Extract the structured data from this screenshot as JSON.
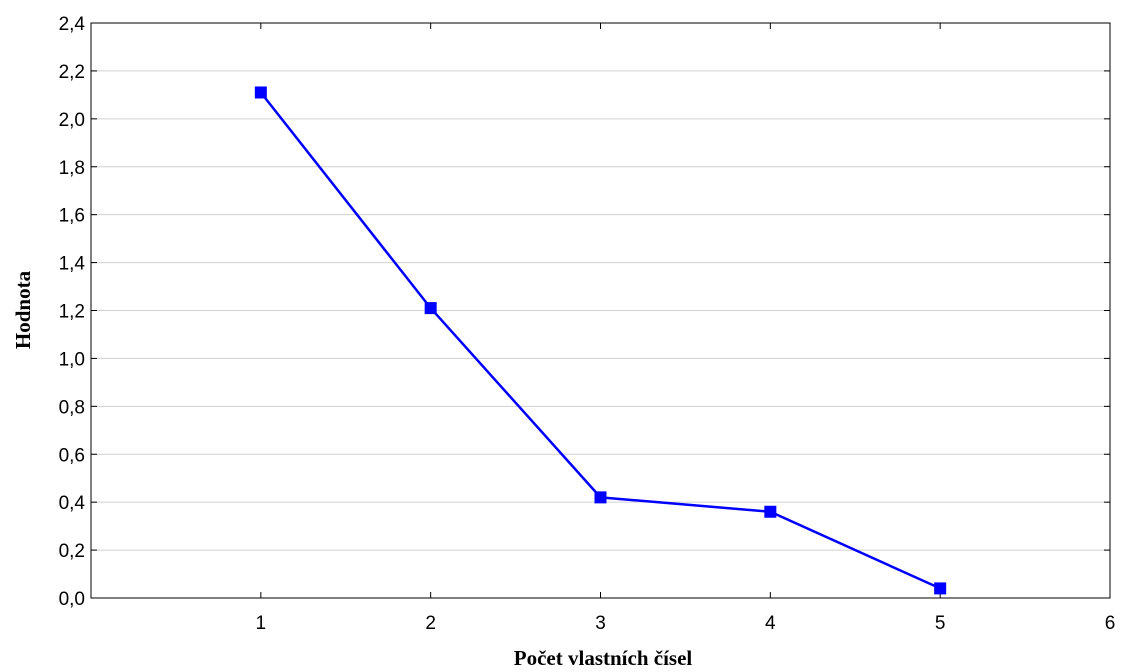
{
  "chart_data": {
    "type": "line",
    "title": "",
    "xlabel": "Počet vlastních čísel",
    "ylabel": "Hodnota",
    "xlim": [
      0,
      6
    ],
    "ylim": [
      0,
      2.4
    ],
    "x_ticks": [
      1,
      2,
      3,
      4,
      5,
      6
    ],
    "x_tick_labels": [
      "1",
      "2",
      "3",
      "4",
      "5",
      "6"
    ],
    "y_ticks": [
      0,
      0.2,
      0.4,
      0.6,
      0.8,
      1.0,
      1.2,
      1.4,
      1.6,
      1.8,
      2.0,
      2.2,
      2.4
    ],
    "y_tick_labels": [
      "0,0",
      "0,2",
      "0,4",
      "0,6",
      "0,8",
      "1,0",
      "1,2",
      "1,4",
      "1,6",
      "1,8",
      "2,0",
      "2,2",
      "2,4"
    ],
    "grid": "horizontal",
    "legend": "none",
    "series": [
      {
        "color": "#0000ff",
        "marker": "square",
        "x": [
          1,
          2,
          3,
          4,
          5
        ],
        "y": [
          2.11,
          1.21,
          0.42,
          0.36,
          0.04
        ]
      }
    ]
  }
}
